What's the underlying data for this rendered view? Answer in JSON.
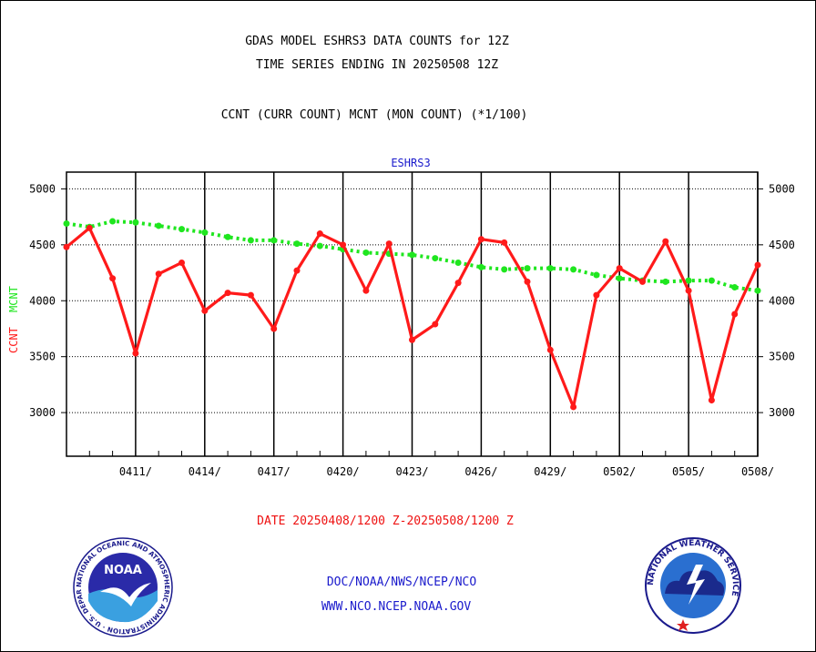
{
  "header": {
    "title_line1": "GDAS MODEL ESHRS3 DATA COUNTS for 12Z",
    "title_line2": "TIME SERIES ENDING IN 20250508 12Z",
    "subtitle": "CCNT (CURR COUNT) MCNT (MON COUNT) (*1/100)",
    "plot_label": "ESHRS3"
  },
  "axis_labels": {
    "y_ccnt": "CCNT",
    "y_mcnt": "MCNT"
  },
  "date_range": "DATE 20250408/1200 Z-20250508/1200 Z",
  "footer": {
    "link1": "DOC/NOAA/NWS/NCEP/NCO",
    "link2": "WWW.NCO.NCEP.NOAA.GOV",
    "noaa_logo_text": "NOAA",
    "noaa_ring_text": "NATIONAL OCEANIC AND ATMOSPHERIC ADMINISTRATION · U.S. DEPARTMENT OF COMMERCE",
    "nws_ring_text": "NATIONAL WEATHER SERVICE"
  },
  "colors": {
    "ccnt": "#ff1a1a",
    "mcnt": "#1fe61f",
    "title": "#000000",
    "plot_label": "#1a1acc",
    "date_text": "#ee1111",
    "link_text": "#1a1acc"
  },
  "chart_data": {
    "type": "line",
    "x": [
      "0408",
      "0409",
      "0410",
      "0411",
      "0412",
      "0413",
      "0414",
      "0415",
      "0416",
      "0417",
      "0418",
      "0419",
      "0420",
      "0421",
      "0422",
      "0423",
      "0424",
      "0425",
      "0426",
      "0427",
      "0428",
      "0429",
      "0430",
      "0501",
      "0502",
      "0503",
      "0504",
      "0505",
      "0506",
      "0507",
      "0508"
    ],
    "series": [
      {
        "name": "CCNT",
        "values": [
          4480,
          4650,
          4200,
          3530,
          4240,
          4340,
          3910,
          4070,
          4050,
          3750,
          4270,
          4600,
          4500,
          4090,
          4510,
          3650,
          3790,
          4160,
          4550,
          4520,
          4170,
          3560,
          3050,
          4050,
          4290,
          4170,
          4530,
          4090,
          3110,
          3880,
          4320
        ]
      },
      {
        "name": "MCNT",
        "values": [
          4690,
          4660,
          4710,
          4700,
          4670,
          4640,
          4610,
          4570,
          4540,
          4540,
          4510,
          4490,
          4460,
          4430,
          4420,
          4410,
          4380,
          4340,
          4300,
          4280,
          4290,
          4290,
          4280,
          4230,
          4200,
          4180,
          4170,
          4180,
          4180,
          4120,
          4090
        ]
      }
    ],
    "x_ticks": [
      "0411/",
      "0414/",
      "0417/",
      "0420/",
      "0423/",
      "0426/",
      "0429/",
      "0502/",
      "0505/",
      "0508/"
    ],
    "y_ticks": [
      3000,
      3500,
      4000,
      4500,
      5000
    ],
    "ylim": [
      2610,
      5150
    ],
    "grid": true
  }
}
